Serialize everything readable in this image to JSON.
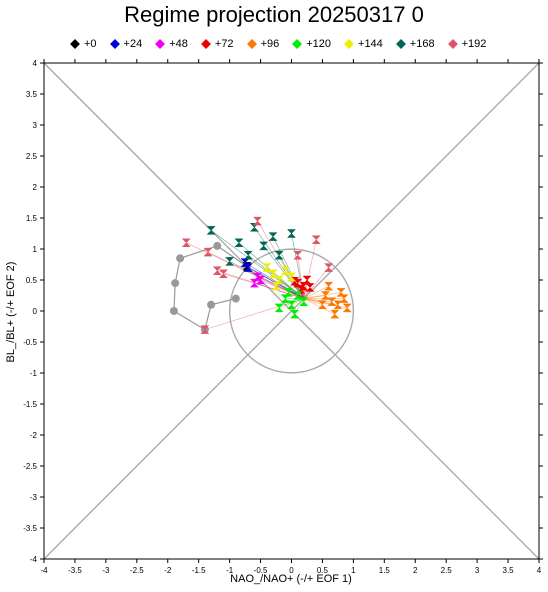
{
  "chart_data": {
    "type": "scatter",
    "title": "Regime projection 20250317 0",
    "xlabel": "NAO_/NAO+ (-/+ EOF 1)",
    "ylabel": "BL_/BL+ (-/+ EOF 2)",
    "xlim": [
      -4,
      4
    ],
    "ylim": [
      -4,
      4
    ],
    "xticks": [
      "-4",
      "-3.5",
      "-3",
      "-2.5",
      "-2",
      "-1.5",
      "-1",
      "-0.5",
      "0",
      "0.5",
      "1",
      "1.5",
      "2",
      "2.5",
      "3",
      "3.5",
      "4"
    ],
    "yticks": [
      "-4",
      "-3.5",
      "-3",
      "-2.5",
      "-2",
      "-1.5",
      "-1",
      "-0.5",
      "0",
      "0.5",
      "1",
      "1.5",
      "2",
      "2.5",
      "3",
      "3.5",
      "4"
    ],
    "legend_position": "top",
    "series": [
      {
        "name": "+0",
        "color": "#000000",
        "marker": "diamond",
        "points": [
          [
            -0.72,
            0.72
          ]
        ]
      },
      {
        "name": "+24",
        "color": "#0000dd",
        "marker": "diamond",
        "points": [
          [
            -0.75,
            0.78
          ],
          [
            -0.7,
            0.7
          ]
        ]
      },
      {
        "name": "+48",
        "color": "#ee00ee",
        "marker": "diamond",
        "points": [
          [
            -0.55,
            0.55
          ],
          [
            -0.6,
            0.45
          ],
          [
            -0.5,
            0.5
          ]
        ]
      },
      {
        "name": "+72",
        "color": "#ee0000",
        "marker": "diamond",
        "points": [
          [
            0.1,
            0.45
          ],
          [
            0.2,
            0.4
          ],
          [
            0.25,
            0.5
          ],
          [
            0.3,
            0.38
          ],
          [
            0.15,
            0.35
          ],
          [
            0.05,
            0.48
          ]
        ]
      },
      {
        "name": "+96",
        "color": "#ff7700",
        "marker": "diamond",
        "points": [
          [
            0.55,
            0.25
          ],
          [
            0.65,
            0.15
          ],
          [
            0.75,
            0.1
          ],
          [
            0.8,
            0.3
          ],
          [
            0.7,
            -0.05
          ],
          [
            0.85,
            0.2
          ],
          [
            0.6,
            0.4
          ],
          [
            0.9,
            0.05
          ],
          [
            0.5,
            0.1
          ]
        ]
      },
      {
        "name": "+120",
        "color": "#00ee00",
        "marker": "diamond",
        "points": [
          [
            -0.1,
            0.2
          ],
          [
            0.0,
            0.1
          ],
          [
            0.1,
            0.25
          ],
          [
            -0.2,
            0.05
          ],
          [
            0.05,
            -0.05
          ],
          [
            0.2,
            0.15
          ],
          [
            -0.05,
            0.3
          ]
        ]
      },
      {
        "name": "+144",
        "color": "#eeee00",
        "marker": "diamond",
        "points": [
          [
            -0.3,
            0.6
          ],
          [
            -0.2,
            0.5
          ],
          [
            -0.4,
            0.7
          ],
          [
            -0.1,
            0.65
          ],
          [
            -0.25,
            0.4
          ],
          [
            0.0,
            0.55
          ]
        ]
      },
      {
        "name": "+168",
        "color": "#006655",
        "marker": "diamond",
        "points": [
          [
            -0.85,
            1.1
          ],
          [
            -0.6,
            1.35
          ],
          [
            -0.3,
            1.2
          ],
          [
            -1.0,
            0.8
          ],
          [
            -0.2,
            0.9
          ],
          [
            0.0,
            1.25
          ],
          [
            -0.7,
            0.9
          ],
          [
            -1.3,
            1.3
          ],
          [
            -0.45,
            1.05
          ]
        ]
      },
      {
        "name": "+192",
        "color": "#dd5566",
        "marker": "diamond",
        "points": [
          [
            -1.7,
            1.1
          ],
          [
            -1.35,
            0.95
          ],
          [
            -1.4,
            -0.3
          ],
          [
            -1.1,
            0.6
          ],
          [
            0.6,
            0.7
          ],
          [
            0.4,
            1.15
          ],
          [
            -0.55,
            1.45
          ],
          [
            -1.2,
            0.65
          ],
          [
            0.1,
            0.9
          ]
        ]
      }
    ],
    "mean_track": {
      "color": "#999999",
      "points": [
        [
          -0.72,
          0.72
        ],
        [
          -1.2,
          1.05
        ],
        [
          -1.8,
          0.85
        ],
        [
          -1.88,
          0.45
        ],
        [
          -1.9,
          0.0
        ],
        [
          -1.4,
          -0.3
        ],
        [
          -1.3,
          0.1
        ],
        [
          -0.9,
          0.2
        ]
      ]
    },
    "circle": {
      "center": [
        0,
        0
      ],
      "radius": 1.0
    }
  }
}
